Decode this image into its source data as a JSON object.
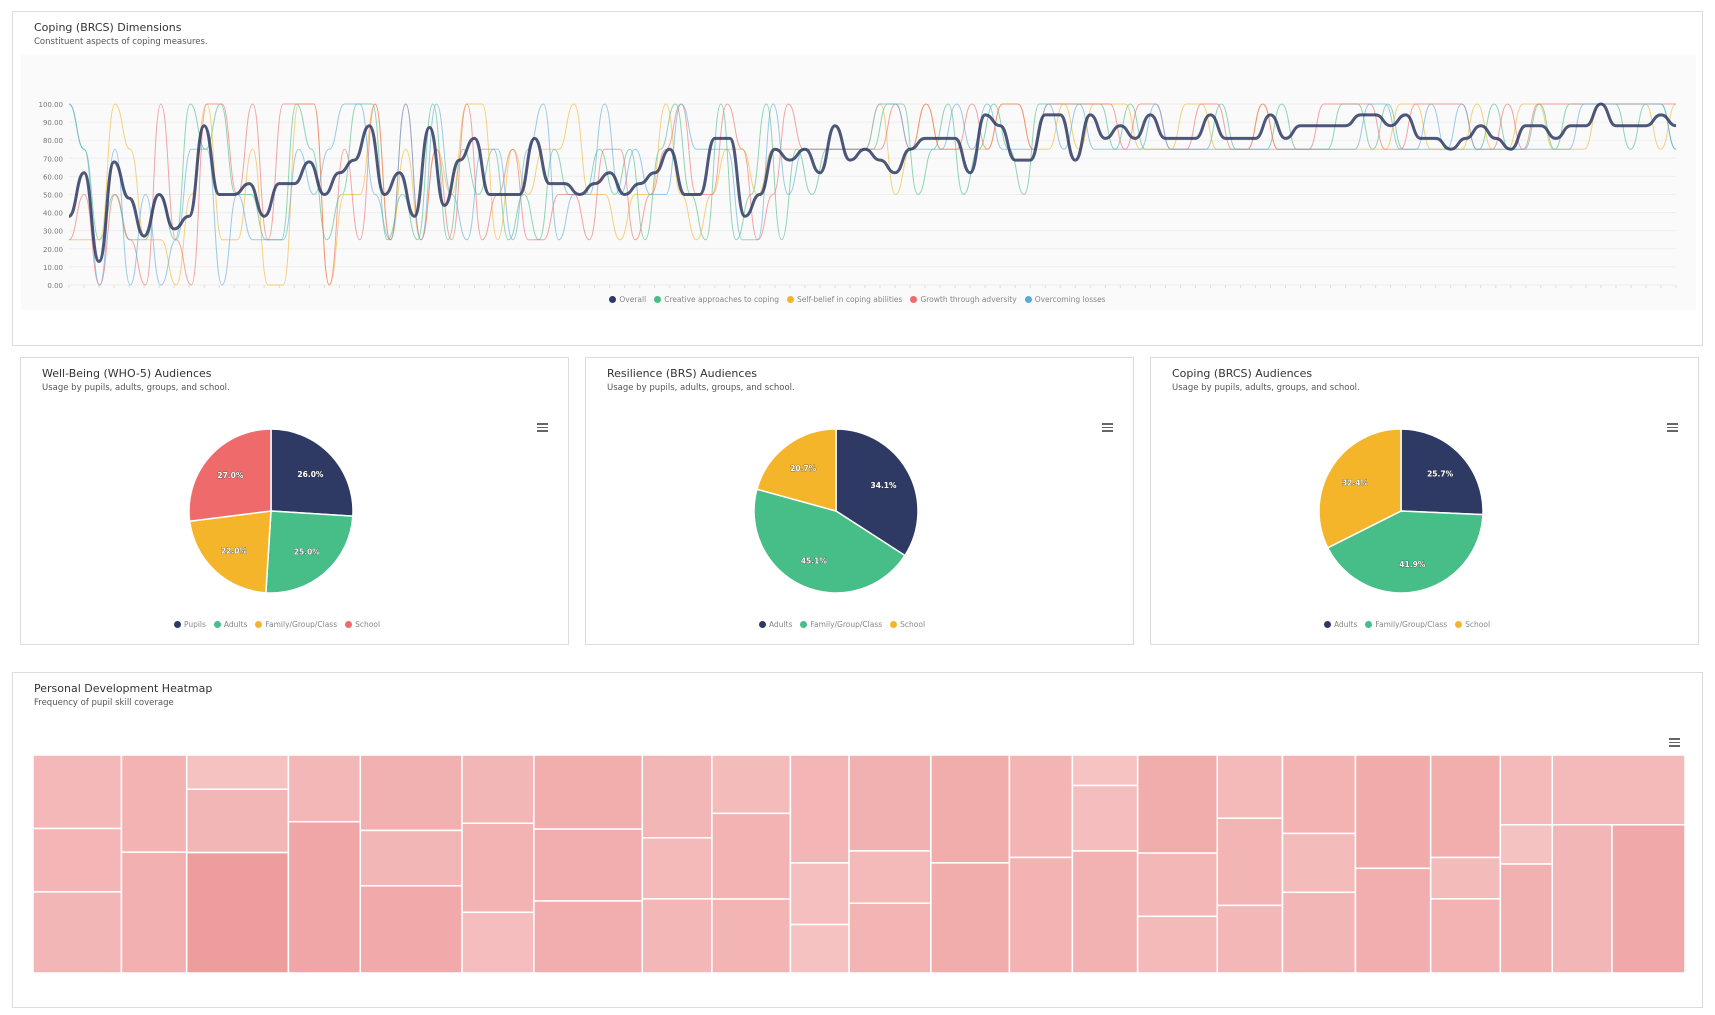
{
  "line_card": {
    "title": "Coping (BRCS) Dimensions",
    "subtitle": "Constituent aspects of coping measures."
  },
  "pie_cards": [
    {
      "title": "Well-Being (WHO-5) Audiences",
      "subtitle": "Usage by pupils, adults, groups, and school."
    },
    {
      "title": "Resilience (BRS) Audiences",
      "subtitle": "Usage by pupils, adults, groups, and school."
    },
    {
      "title": "Coping (BRCS) Audiences",
      "subtitle": "Usage by pupils, adults, groups, and school."
    }
  ],
  "heatmap_card": {
    "title": "Personal Development Heatmap",
    "subtitle": "Frequency of pupil skill coverage"
  },
  "colors": {
    "navy": "#2e3a63",
    "green": "#47bd87",
    "yellow": "#f4b52a",
    "red": "#ef6b6b",
    "blue": "#5aaad9"
  },
  "chart_data": [
    {
      "type": "line",
      "ylim": [
        0,
        100
      ],
      "yticks": [
        "0.00",
        "10.00",
        "20.00",
        "30.00",
        "40.00",
        "50.00",
        "60.00",
        "70.00",
        "80.00",
        "90.00",
        "100.00"
      ],
      "series": [
        {
          "name": "Overall",
          "color": "#2e3a63",
          "values": [
            38,
            62,
            13,
            68,
            48,
            27,
            50,
            31,
            38,
            88,
            50,
            50,
            56,
            38,
            56,
            56,
            68,
            50,
            62,
            69,
            88,
            50,
            62,
            38,
            87,
            44,
            69,
            81,
            50,
            50,
            50,
            81,
            56,
            56,
            50,
            56,
            62,
            50,
            56,
            62,
            75,
            50,
            50,
            81,
            81,
            38,
            50,
            75,
            69,
            75,
            62,
            88,
            69,
            75,
            69,
            62,
            75,
            81,
            81,
            81,
            62,
            94,
            88,
            69,
            69,
            94,
            94,
            69,
            94,
            81,
            88,
            81,
            94,
            81,
            81,
            81,
            94,
            81,
            81,
            81,
            94,
            81,
            88,
            88,
            88,
            88,
            94,
            94,
            88,
            94,
            81,
            81,
            75,
            81,
            88,
            81,
            75,
            88,
            88,
            81,
            88,
            88,
            100,
            88,
            88,
            88,
            94,
            88
          ]
        },
        {
          "name": "Creative approaches to coping",
          "color": "#47bd87",
          "values": [
            100,
            75,
            25,
            50,
            25,
            25,
            50,
            25,
            100,
            75,
            100,
            50,
            50,
            25,
            25,
            100,
            75,
            25,
            50,
            100,
            100,
            25,
            50,
            25,
            100,
            25,
            75,
            50,
            75,
            25,
            50,
            25,
            75,
            50,
            50,
            75,
            50,
            75,
            25,
            75,
            100,
            50,
            25,
            100,
            25,
            50,
            100,
            25,
            75,
            50,
            75,
            75,
            75,
            75,
            100,
            100,
            50,
            75,
            100,
            50,
            75,
            100,
            75,
            50,
            100,
            100,
            100,
            100,
            100,
            75,
            100,
            75,
            75,
            75,
            75,
            75,
            100,
            75,
            75,
            75,
            100,
            75,
            75,
            75,
            100,
            100,
            75,
            100,
            75,
            75,
            75,
            75,
            75,
            75,
            100,
            75,
            75,
            100,
            75,
            100,
            100,
            100,
            100,
            75,
            100,
            100,
            75
          ]
        },
        {
          "name": "Self-belief in coping abilities",
          "color": "#f4b52a",
          "values": [
            25,
            25,
            25,
            100,
            75,
            25,
            25,
            0,
            50,
            100,
            25,
            25,
            75,
            0,
            0,
            100,
            100,
            0,
            50,
            50,
            100,
            25,
            75,
            25,
            75,
            50,
            100,
            100,
            25,
            75,
            50,
            75,
            75,
            100,
            50,
            50,
            25,
            50,
            50,
            100,
            50,
            25,
            50,
            75,
            75,
            50,
            75,
            75,
            75,
            75,
            75,
            75,
            75,
            100,
            50,
            75,
            100,
            75,
            75,
            75,
            75,
            100,
            100,
            75,
            75,
            100,
            75,
            100,
            100,
            100,
            75,
            75,
            75,
            100,
            100,
            75,
            75,
            75,
            100,
            75,
            75,
            75,
            75,
            75,
            75,
            75,
            75,
            100,
            100,
            75,
            75,
            75,
            100,
            75,
            75,
            100,
            100,
            75,
            75,
            75,
            100,
            100,
            100,
            100,
            75,
            100
          ]
        },
        {
          "name": "Growth through adversity",
          "color": "#ef6b6b",
          "values": [
            25,
            50,
            0,
            50,
            25,
            0,
            100,
            25,
            0,
            100,
            100,
            50,
            100,
            25,
            100,
            100,
            100,
            0,
            75,
            25,
            100,
            25,
            100,
            25,
            75,
            25,
            100,
            25,
            50,
            75,
            25,
            25,
            50,
            50,
            25,
            75,
            75,
            25,
            50,
            75,
            100,
            50,
            50,
            100,
            75,
            25,
            50,
            100,
            75,
            75,
            75,
            75,
            75,
            75,
            100,
            75,
            100,
            75,
            75,
            100,
            75,
            100,
            100,
            75,
            100,
            100,
            100,
            100,
            100,
            75,
            100,
            100,
            75,
            75,
            100,
            100,
            75,
            75,
            100,
            75,
            75,
            75,
            100,
            100,
            100,
            100,
            75,
            75,
            100,
            100,
            100,
            100,
            75,
            75,
            100,
            75,
            100,
            100,
            100,
            100,
            100,
            100,
            100,
            100,
            100,
            100
          ]
        },
        {
          "name": "Overcoming losses",
          "color": "#5aaad9",
          "values": [
            100,
            75,
            0,
            75,
            0,
            50,
            0,
            25,
            75,
            75,
            0,
            50,
            25,
            25,
            25,
            75,
            50,
            75,
            100,
            100,
            50,
            25,
            100,
            25,
            100,
            50,
            25,
            75,
            75,
            25,
            75,
            100,
            25,
            50,
            50,
            100,
            50,
            75,
            50,
            50,
            100,
            75,
            75,
            75,
            25,
            25,
            100,
            50,
            75,
            75,
            75,
            75,
            75,
            100,
            100,
            75,
            75,
            75,
            100,
            75,
            100,
            75,
            75,
            75,
            100,
            75,
            100,
            75,
            75,
            75,
            75,
            100,
            75,
            75,
            75,
            75,
            75,
            75,
            75,
            75,
            75,
            75,
            75,
            75,
            75,
            100,
            100,
            75,
            75,
            100,
            75,
            100,
            75,
            75,
            75,
            75,
            75,
            75,
            75,
            100,
            100,
            100,
            100,
            100,
            100,
            75
          ]
        }
      ]
    },
    {
      "type": "pie",
      "slices": [
        {
          "name": "Pupils",
          "value": 26.0,
          "label": "26.0%",
          "color": "#2e3a63"
        },
        {
          "name": "Adults",
          "value": 25.0,
          "label": "25.0%",
          "color": "#47bd87"
        },
        {
          "name": "Family/Group/Class",
          "value": 22.0,
          "label": "22.0%",
          "color": "#f4b52a"
        },
        {
          "name": "School",
          "value": 27.0,
          "label": "27.0%",
          "color": "#ef6b6b"
        }
      ]
    },
    {
      "type": "pie",
      "slices": [
        {
          "name": "Adults",
          "value": 34.1,
          "label": "34.1%",
          "color": "#2e3a63"
        },
        {
          "name": "Family/Group/Class",
          "value": 45.1,
          "label": "45.1%",
          "color": "#47bd87"
        },
        {
          "name": "School",
          "value": 20.7,
          "label": "20.7%",
          "color": "#f4b52a"
        }
      ]
    },
    {
      "type": "pie",
      "slices": [
        {
          "name": "Adults",
          "value": 25.7,
          "label": "25.7%",
          "color": "#2e3a63"
        },
        {
          "name": "Family/Group/Class",
          "value": 41.9,
          "label": "41.9%",
          "color": "#47bd87"
        },
        {
          "name": "School",
          "value": 32.4,
          "label": "32.4%",
          "color": "#f4b52a"
        }
      ]
    },
    {
      "type": "heatmap",
      "columns": [
        {
          "weight": 80,
          "cells": [
            {
              "v": 58,
              "c": 0.32
            },
            {
              "v": 50,
              "c": 0.35
            },
            {
              "v": 64,
              "c": 0.34
            }
          ]
        },
        {
          "weight": 59,
          "cells": [
            {
              "v": 78,
              "c": 0.37
            },
            {
              "v": 97,
              "c": 0.41
            }
          ]
        },
        {
          "weight": 92,
          "cells": [
            {
              "v": 27,
              "c": 0.22
            },
            {
              "v": 50,
              "c": 0.34
            },
            {
              "v": 95,
              "c": 0.62
            }
          ]
        },
        {
          "weight": 65,
          "cells": [
            {
              "v": 30,
              "c": 0.33
            },
            {
              "v": 68,
              "c": 0.52
            }
          ]
        },
        {
          "weight": 92,
          "cells": [
            {
              "v": 45,
              "c": 0.4
            },
            {
              "v": 33,
              "c": 0.34
            },
            {
              "v": 52,
              "c": 0.49
            }
          ]
        },
        {
          "weight": 65,
          "cells": [
            {
              "v": 36,
              "c": 0.34
            },
            {
              "v": 47,
              "c": 0.37
            },
            {
              "v": 32,
              "c": 0.26
            }
          ]
        },
        {
          "weight": 98,
          "cells": [
            {
              "v": 35,
              "c": 0.44
            },
            {
              "v": 34,
              "c": 0.43
            },
            {
              "v": 34,
              "c": 0.43
            }
          ]
        },
        {
          "weight": 63,
          "cells": [
            {
              "v": 38,
              "c": 0.34
            },
            {
              "v": 28,
              "c": 0.3
            },
            {
              "v": 34,
              "c": 0.33
            }
          ]
        },
        {
          "weight": 71,
          "cells": [
            {
              "v": 30,
              "c": 0.28
            },
            {
              "v": 44,
              "c": 0.37
            },
            {
              "v": 38,
              "c": 0.36
            }
          ]
        },
        {
          "weight": 53,
          "cells": [
            {
              "v": 49,
              "c": 0.35
            },
            {
              "v": 28,
              "c": 0.24
            },
            {
              "v": 22,
              "c": 0.22
            }
          ]
        },
        {
          "weight": 74,
          "cells": [
            {
              "v": 44,
              "c": 0.4
            },
            {
              "v": 24,
              "c": 0.3
            },
            {
              "v": 32,
              "c": 0.36
            }
          ]
        },
        {
          "weight": 71,
          "cells": [
            {
              "v": 49,
              "c": 0.45
            },
            {
              "v": 50,
              "c": 0.45
            }
          ]
        },
        {
          "weight": 57,
          "cells": [
            {
              "v": 47,
              "c": 0.36
            },
            {
              "v": 53,
              "c": 0.38
            }
          ]
        },
        {
          "weight": 59,
          "cells": [
            {
              "v": 14,
              "c": 0.2
            },
            {
              "v": 30,
              "c": 0.26
            },
            {
              "v": 56,
              "c": 0.39
            }
          ]
        },
        {
          "weight": 72,
          "cells": [
            {
              "v": 45,
              "c": 0.45
            },
            {
              "v": 29,
              "c": 0.33
            },
            {
              "v": 26,
              "c": 0.29
            }
          ]
        },
        {
          "weight": 59,
          "cells": [
            {
              "v": 29,
              "c": 0.3
            },
            {
              "v": 40,
              "c": 0.36
            },
            {
              "v": 31,
              "c": 0.33
            }
          ]
        },
        {
          "weight": 66,
          "cells": [
            {
              "v": 36,
              "c": 0.37
            },
            {
              "v": 27,
              "c": 0.28
            },
            {
              "v": 37,
              "c": 0.34
            }
          ]
        },
        {
          "weight": 68,
          "cells": [
            {
              "v": 52,
              "c": 0.47
            },
            {
              "v": 48,
              "c": 0.43
            }
          ]
        },
        {
          "weight": 63,
          "cells": [
            {
              "v": 47,
              "c": 0.44
            },
            {
              "v": 19,
              "c": 0.28
            },
            {
              "v": 34,
              "c": 0.38
            }
          ]
        },
        {
          "weight": 47,
          "cells": [
            {
              "v": 32,
              "c": 0.3
            },
            {
              "v": 18,
              "c": 0.21
            },
            {
              "v": 50,
              "c": 0.4
            }
          ]
        },
        {
          "weight": 120,
          "cells": [
            {
              "v": 32,
              "c": 0.3
            },
            {
              "v": 68,
              "c": 0.45,
              "split": [
                {
                  "v": 45,
                  "c": 0.34
                },
                {
                  "v": 55,
                  "c": 0.5
                }
              ]
            }
          ]
        }
      ]
    }
  ]
}
